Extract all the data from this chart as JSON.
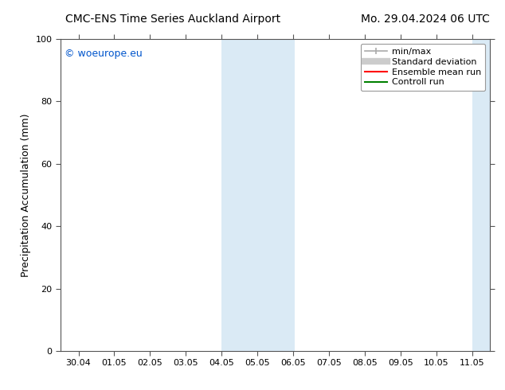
{
  "title_left": "CMC-ENS Time Series Auckland Airport",
  "title_right": "Mo. 29.04.2024 06 UTC",
  "ylabel": "Precipitation Accumulation (mm)",
  "ylim": [
    0,
    100
  ],
  "yticks": [
    0,
    20,
    40,
    60,
    80,
    100
  ],
  "xtick_labels": [
    "30.04",
    "01.05",
    "02.05",
    "03.05",
    "04.05",
    "05.05",
    "06.05",
    "07.05",
    "08.05",
    "09.05",
    "10.05",
    "11.05"
  ],
  "shaded_band1": [
    4.0,
    6.05
  ],
  "shaded_band2": [
    11.0,
    11.6
  ],
  "shaded_color": "#daeaf5",
  "watermark_text": "© woeurope.eu",
  "watermark_color": "#0055cc",
  "background_color": "#ffffff",
  "plot_bg_color": "#ffffff",
  "legend_items": [
    {
      "label": "min/max",
      "color": "#aaaaaa",
      "lw": 1.2
    },
    {
      "label": "Standard deviation",
      "color": "#cccccc",
      "lw": 6
    },
    {
      "label": "Ensemble mean run",
      "color": "#ff0000",
      "lw": 1.5
    },
    {
      "label": "Controll run",
      "color": "#008000",
      "lw": 1.5
    }
  ],
  "title_fontsize": 10,
  "tick_label_fontsize": 8,
  "ylabel_fontsize": 9,
  "legend_fontsize": 8
}
